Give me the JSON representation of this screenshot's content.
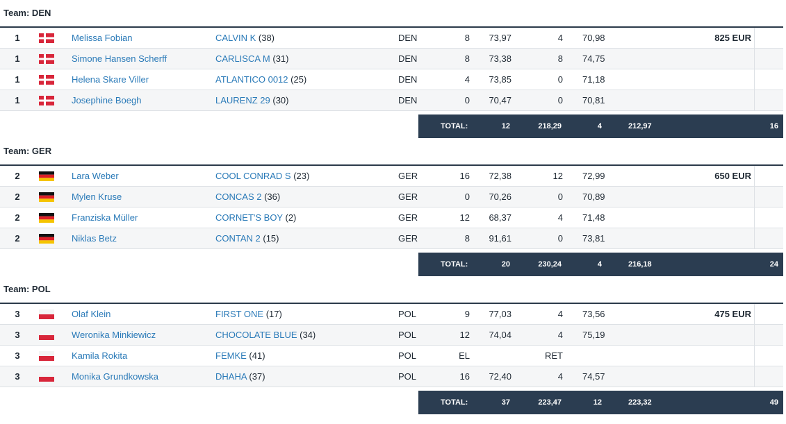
{
  "teams": [
    {
      "title": "Team: DEN",
      "rows": [
        {
          "rank": "1",
          "flag": "denmark",
          "rider": "Melissa Fobian",
          "horse": "CALVIN K",
          "horse_num": " (38)",
          "nat": "DEN",
          "f1": "8",
          "t1": "73,97",
          "f2": "4",
          "t2": "70,98",
          "prize": "825 EUR"
        },
        {
          "rank": "1",
          "flag": "denmark",
          "rider": "Simone Hansen Scherff",
          "horse": "CARLISCA M",
          "horse_num": " (31)",
          "nat": "DEN",
          "f1": "8",
          "t1": "73,38",
          "f2": "8",
          "t2": "74,75",
          "prize": ""
        },
        {
          "rank": "1",
          "flag": "denmark",
          "rider": "Helena Skare Viller",
          "horse": "ATLANTICO 0012",
          "horse_num": " (25)",
          "nat": "DEN",
          "f1": "4",
          "t1": "73,85",
          "f2": "0",
          "t2": "71,18",
          "prize": ""
        },
        {
          "rank": "1",
          "flag": "denmark",
          "rider": "Josephine Boegh",
          "horse": "LAURENZ 29",
          "horse_num": " (30)",
          "nat": "DEN",
          "f1": "0",
          "t1": "70,47",
          "f2": "0",
          "t2": "70,81",
          "prize": ""
        }
      ],
      "total": {
        "label": "TOTAL:",
        "f1": "12",
        "t1": "218,29",
        "f2": "4",
        "t2": "212,97",
        "penalties": "16"
      }
    },
    {
      "title": "Team: GER",
      "rows": [
        {
          "rank": "2",
          "flag": "germany",
          "rider": "Lara Weber",
          "horse": "COOL CONRAD S",
          "horse_num": " (23)",
          "nat": "GER",
          "f1": "16",
          "t1": "72,38",
          "f2": "12",
          "t2": "72,99",
          "prize": "650 EUR"
        },
        {
          "rank": "2",
          "flag": "germany",
          "rider": "Mylen Kruse",
          "horse": "CONCAS 2",
          "horse_num": " (36)",
          "nat": "GER",
          "f1": "0",
          "t1": "70,26",
          "f2": "0",
          "t2": "70,89",
          "prize": ""
        },
        {
          "rank": "2",
          "flag": "germany",
          "rider": "Franziska Müller",
          "horse": "CORNET'S BOY",
          "horse_num": " (2)",
          "nat": "GER",
          "f1": "12",
          "t1": "68,37",
          "f2": "4",
          "t2": "71,48",
          "prize": ""
        },
        {
          "rank": "2",
          "flag": "germany",
          "rider": "Niklas Betz",
          "horse": "CONTAN 2",
          "horse_num": " (15)",
          "nat": "GER",
          "f1": "8",
          "t1": "91,61",
          "f2": "0",
          "t2": "73,81",
          "prize": ""
        }
      ],
      "total": {
        "label": "TOTAL:",
        "f1": "20",
        "t1": "230,24",
        "f2": "4",
        "t2": "216,18",
        "penalties": "24"
      }
    },
    {
      "title": "Team: POL",
      "rows": [
        {
          "rank": "3",
          "flag": "poland",
          "rider": "Olaf Klein",
          "horse": "FIRST ONE",
          "horse_num": " (17)",
          "nat": "POL",
          "f1": "9",
          "t1": "77,03",
          "f2": "4",
          "t2": "73,56",
          "prize": "475 EUR"
        },
        {
          "rank": "3",
          "flag": "poland",
          "rider": "Weronika Minkiewicz",
          "horse": "CHOCOLATE BLUE",
          "horse_num": " (34)",
          "nat": "POL",
          "f1": "12",
          "t1": "74,04",
          "f2": "4",
          "t2": "75,19",
          "prize": ""
        },
        {
          "rank": "3",
          "flag": "poland",
          "rider": "Kamila Rokita",
          "horse": "FEMKE",
          "horse_num": " (41)",
          "nat": "POL",
          "f1": "EL",
          "t1": "",
          "f2": "RET",
          "t2": "",
          "prize": ""
        },
        {
          "rank": "3",
          "flag": "poland",
          "rider": "Monika Grundkowska",
          "horse": "DHAHA",
          "horse_num": " (37)",
          "nat": "POL",
          "f1": "16",
          "t1": "72,40",
          "f2": "4",
          "t2": "74,57",
          "prize": ""
        }
      ],
      "total": {
        "label": "TOTAL:",
        "f1": "37",
        "t1": "223,47",
        "f2": "12",
        "t2": "223,32",
        "penalties": "49"
      }
    }
  ],
  "colors": {
    "link": "#2a7ab8",
    "total_bar": "#2b3d51",
    "row_alt": "#f5f6f7"
  }
}
